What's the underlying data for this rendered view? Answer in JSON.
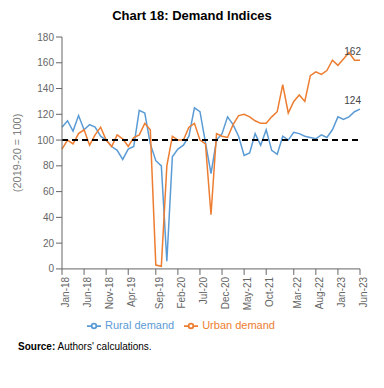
{
  "chart_data": {
    "type": "line",
    "title": "Chart 18: Demand Indices",
    "y_label": "(2019-20 = 100)",
    "source": "Source: Authors' calculations.",
    "categories": [
      "Jan-18",
      null,
      null,
      null,
      "Jun-18",
      null,
      null,
      null,
      "Nov-18",
      null,
      null,
      null,
      "Apr-19",
      null,
      null,
      null,
      null,
      "Sep-19",
      null,
      null,
      null,
      "Feb-20",
      null,
      null,
      null,
      "Jul-20",
      null,
      null,
      null,
      "Dec-20",
      null,
      null,
      null,
      "May-21",
      null,
      null,
      null,
      "Oct-21",
      null,
      null,
      null,
      null,
      "Mar-22",
      null,
      null,
      null,
      "Aug-22",
      null,
      null,
      null,
      "Jan-23",
      null,
      null,
      null,
      "Jun-23"
    ],
    "series": [
      {
        "name": "Rural demand",
        "color": "#5b9bd5",
        "values": [
          110,
          115,
          107,
          119,
          108,
          112,
          110,
          103,
          100,
          95,
          92,
          85,
          93,
          95,
          123,
          121,
          97,
          84,
          80,
          6,
          87,
          93,
          96,
          103,
          125,
          122,
          98,
          74,
          100,
          105,
          118,
          112,
          103,
          88,
          90,
          105,
          96,
          108,
          92,
          89,
          103,
          100,
          106,
          105,
          103,
          102,
          101,
          104,
          102,
          108,
          118,
          116,
          118,
          122,
          124
        ]
      },
      {
        "name": "Urban demand",
        "color": "#ed7d31",
        "values": [
          93,
          100,
          97,
          105,
          108,
          96,
          104,
          110,
          100,
          95,
          104,
          101,
          95,
          102,
          104,
          113,
          108,
          3,
          2,
          80,
          103,
          100,
          100,
          110,
          113,
          100,
          97,
          42,
          105,
          103,
          102,
          112,
          119,
          120,
          118,
          115,
          113,
          113,
          118,
          122,
          143,
          121,
          130,
          135,
          130,
          150,
          153,
          151,
          154,
          162,
          158,
          163,
          168,
          162,
          162
        ]
      }
    ],
    "reference_lines": [
      {
        "value": 100,
        "color": "#000000",
        "line_style": "dashed"
      }
    ],
    "annotations": [
      {
        "label": "162",
        "value": 162
      },
      {
        "label": "124",
        "value": 124
      }
    ],
    "ylim": [
      0,
      180
    ],
    "yticks": [
      0,
      20,
      40,
      60,
      80,
      100,
      120,
      140,
      160,
      180
    ],
    "grid": false,
    "legend": "bottom"
  }
}
